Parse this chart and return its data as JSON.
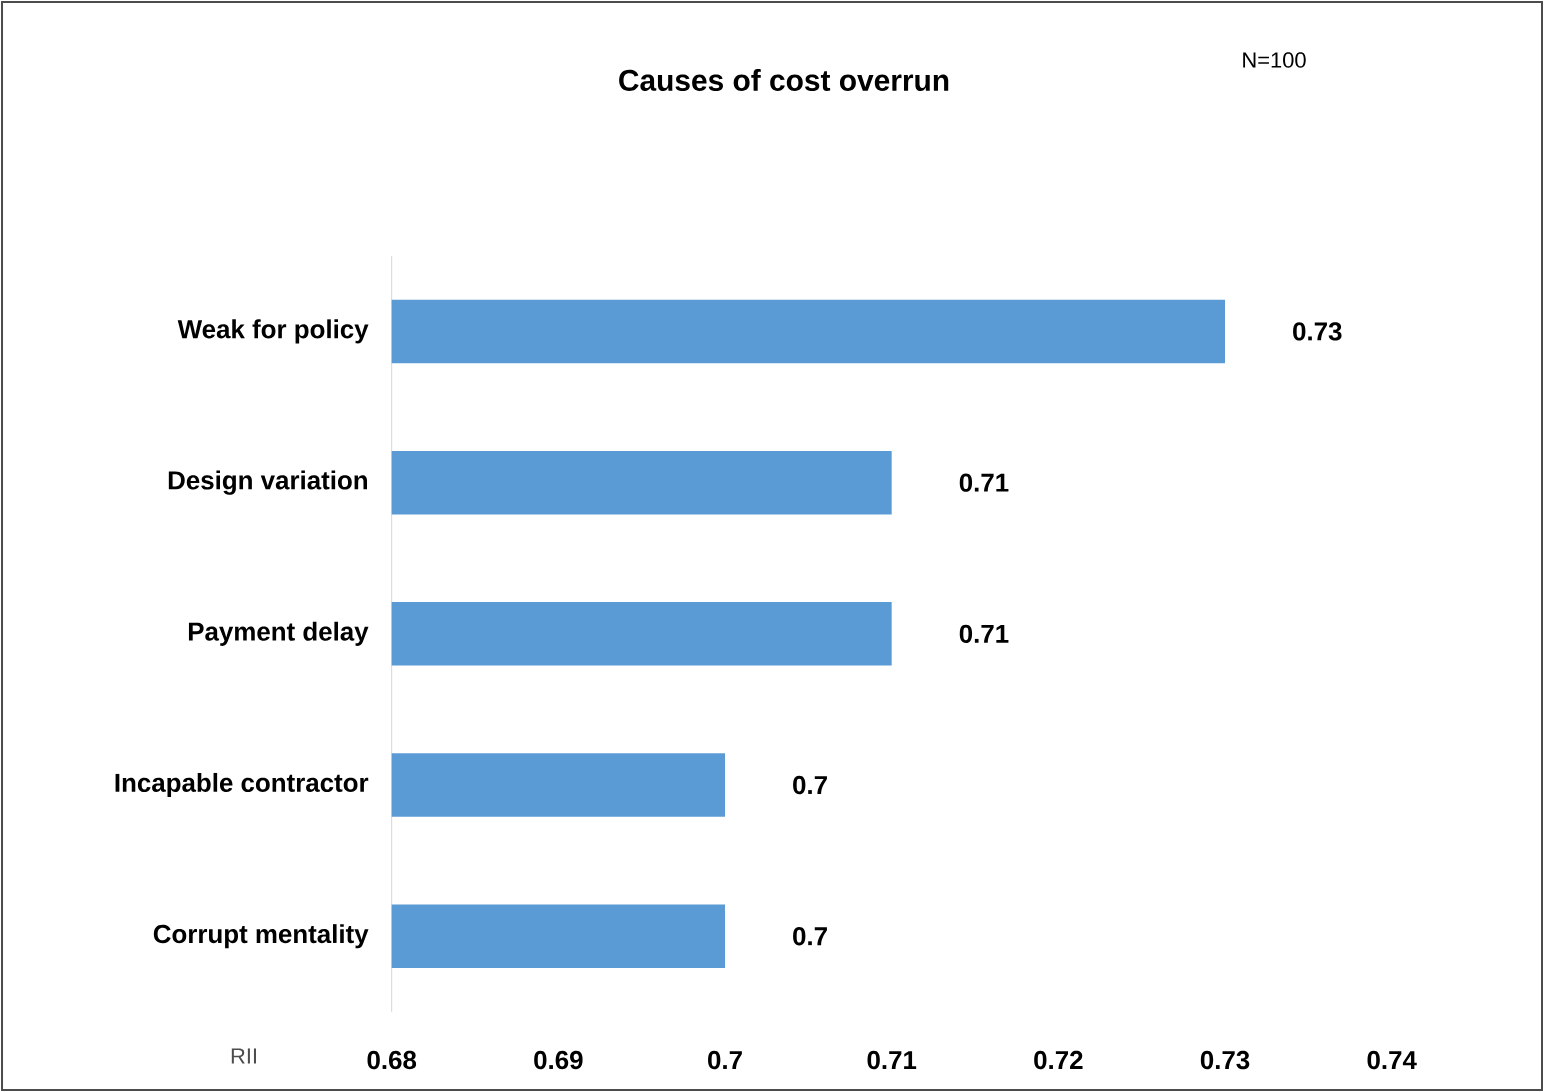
{
  "chart_data": {
    "type": "bar",
    "orientation": "horizontal",
    "title": "Causes of cost overrun",
    "xlabel": "RII",
    "annotations": [
      "N=100"
    ],
    "categories": [
      "Weak for policy",
      "Design variation",
      "Payment delay",
      "Incapable contractor",
      "Corrupt mentality"
    ],
    "values": [
      0.73,
      0.71,
      0.71,
      0.7,
      0.7
    ],
    "color": "#5b9bd5",
    "data_labels": true,
    "xlim": [
      0.68,
      0.74
    ],
    "xticks": [
      0.68,
      0.69,
      0.7,
      0.71,
      0.72,
      0.73,
      0.74
    ],
    "grid": false,
    "legend": false
  }
}
